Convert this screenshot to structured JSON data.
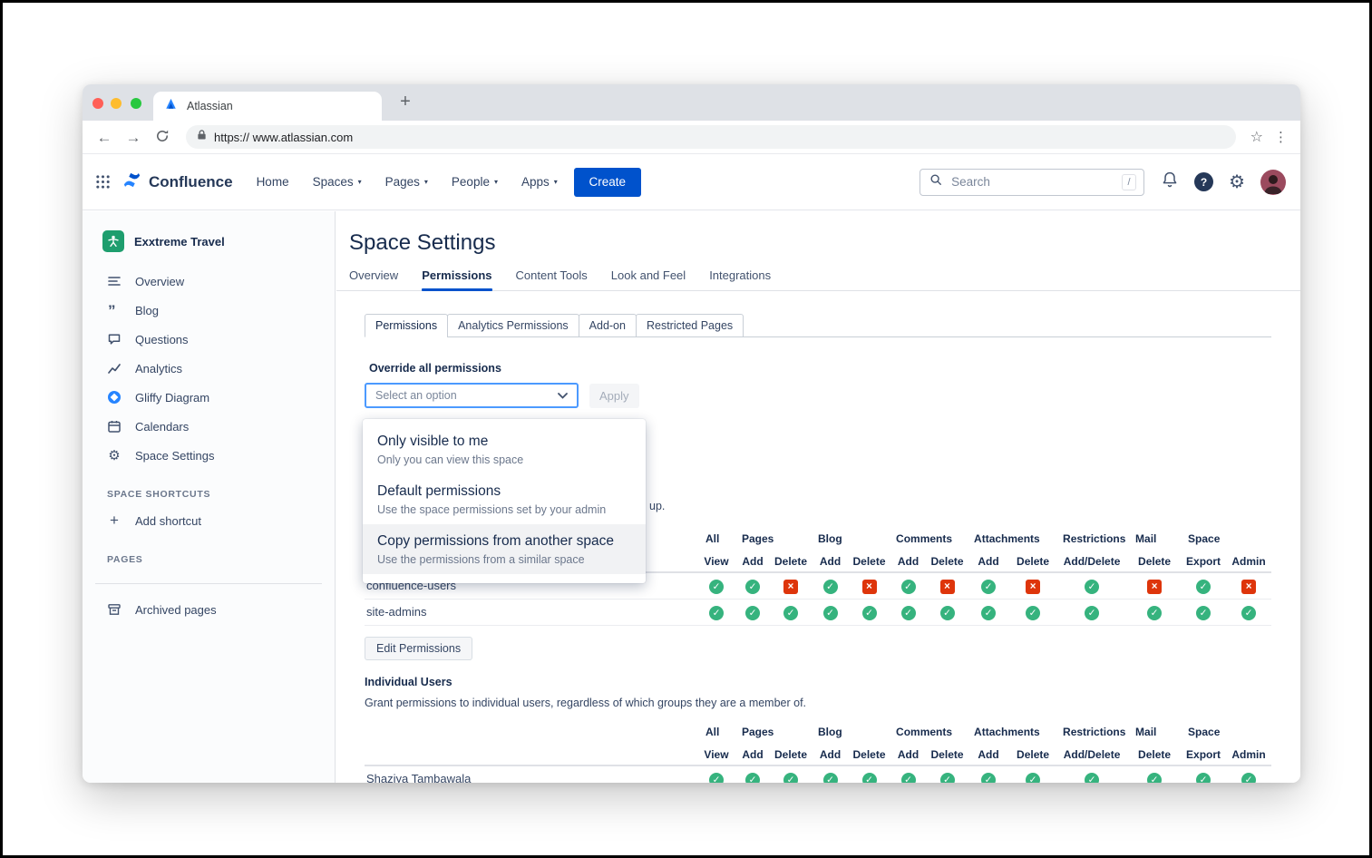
{
  "browser": {
    "tab_title": "Atlassian",
    "new_tab_label": "+",
    "url": "https:// www.atlassian.com"
  },
  "header": {
    "product_name": "Confluence",
    "nav_items": [
      {
        "label": "Home",
        "caret": false
      },
      {
        "label": "Spaces",
        "caret": true
      },
      {
        "label": "Pages",
        "caret": true
      },
      {
        "label": "People",
        "caret": true
      },
      {
        "label": "Apps",
        "caret": true
      }
    ],
    "create_button": "Create",
    "search": {
      "placeholder": "Search",
      "shortcut_key": "/"
    }
  },
  "sidebar": {
    "space_name": "Exxtreme Travel",
    "items": [
      {
        "label": "Overview",
        "icon": "align-left-icon"
      },
      {
        "label": "Blog",
        "icon": "quote-icon"
      },
      {
        "label": "Questions",
        "icon": "comment-icon"
      },
      {
        "label": "Analytics",
        "icon": "chart-icon"
      },
      {
        "label": "Gliffy Diagram",
        "icon": "gliffy-icon"
      },
      {
        "label": "Calendars",
        "icon": "calendar-icon"
      },
      {
        "label": "Space Settings",
        "icon": "gear-icon"
      }
    ],
    "shortcuts_heading": "SPACE SHORTCUTS",
    "add_shortcut_label": "Add shortcut",
    "pages_heading": "PAGES",
    "archived_pages_label": "Archived pages"
  },
  "main": {
    "title": "Space Settings",
    "tabs": [
      {
        "label": "Overview",
        "active": false
      },
      {
        "label": "Permissions",
        "active": true
      },
      {
        "label": "Content Tools",
        "active": false
      },
      {
        "label": "Look and Feel",
        "active": false
      },
      {
        "label": "Integrations",
        "active": false
      }
    ],
    "subtabs": [
      {
        "label": "Permissions",
        "active": true
      },
      {
        "label": "Analytics Permissions",
        "active": false
      },
      {
        "label": "Add-on",
        "active": false
      },
      {
        "label": "Restricted Pages",
        "active": false
      }
    ],
    "override": {
      "heading": "Override all permissions",
      "select_value": "Select an option",
      "apply_label": "Apply"
    },
    "dropdown_options": [
      {
        "title": "Only visible to me",
        "desc": "Only you can view this space",
        "highlighted": false
      },
      {
        "title": "Default permissions",
        "desc": "Use the space permissions set by your admin",
        "highlighted": false
      },
      {
        "title": "Copy permissions from another space",
        "desc": "Use the permissions from a similar space",
        "highlighted": true
      }
    ],
    "obscured_text_fragment": "up.",
    "perm_columns": {
      "groups": [
        {
          "label": "All",
          "span": 1
        },
        {
          "label": "Pages",
          "span": 2
        },
        {
          "label": "Blog",
          "span": 2
        },
        {
          "label": "Comments",
          "span": 2
        },
        {
          "label": "Attachments",
          "span": 2
        },
        {
          "label": "Restrictions",
          "span": 1
        },
        {
          "label": "Mail",
          "span": 1
        },
        {
          "label": "Space",
          "span": 2
        }
      ],
      "subs": [
        "View",
        "Add",
        "Delete",
        "Add",
        "Delete",
        "Add",
        "Delete",
        "Add",
        "Delete",
        "Add/Delete",
        "Delete",
        "Export",
        "Admin"
      ]
    },
    "groups_table": {
      "rows": [
        {
          "name": "confluence-users",
          "perms": [
            "allow",
            "allow",
            "deny",
            "allow",
            "deny",
            "allow",
            "deny",
            "allow",
            "deny",
            "allow",
            "deny",
            "allow",
            "deny"
          ]
        },
        {
          "name": "site-admins",
          "perms": [
            "allow",
            "allow",
            "allow",
            "allow",
            "allow",
            "allow",
            "allow",
            "allow",
            "allow",
            "allow",
            "allow",
            "allow",
            "allow"
          ]
        }
      ],
      "edit_button": "Edit Permissions"
    },
    "individual_users": {
      "heading": "Individual Users",
      "desc": "Grant permissions to individual users, regardless of which groups they are a member of.",
      "rows": [
        {
          "name": "Shaziya Tambawala",
          "perms": [
            "allow",
            "allow",
            "allow",
            "allow",
            "allow",
            "allow",
            "allow",
            "allow",
            "allow",
            "allow",
            "allow",
            "allow",
            "allow"
          ]
        }
      ]
    }
  },
  "colors": {
    "brand_blue": "#0052CC",
    "focus_blue": "#4C9AFF",
    "allow_green": "#36B37E",
    "deny_red": "#DE350B"
  }
}
